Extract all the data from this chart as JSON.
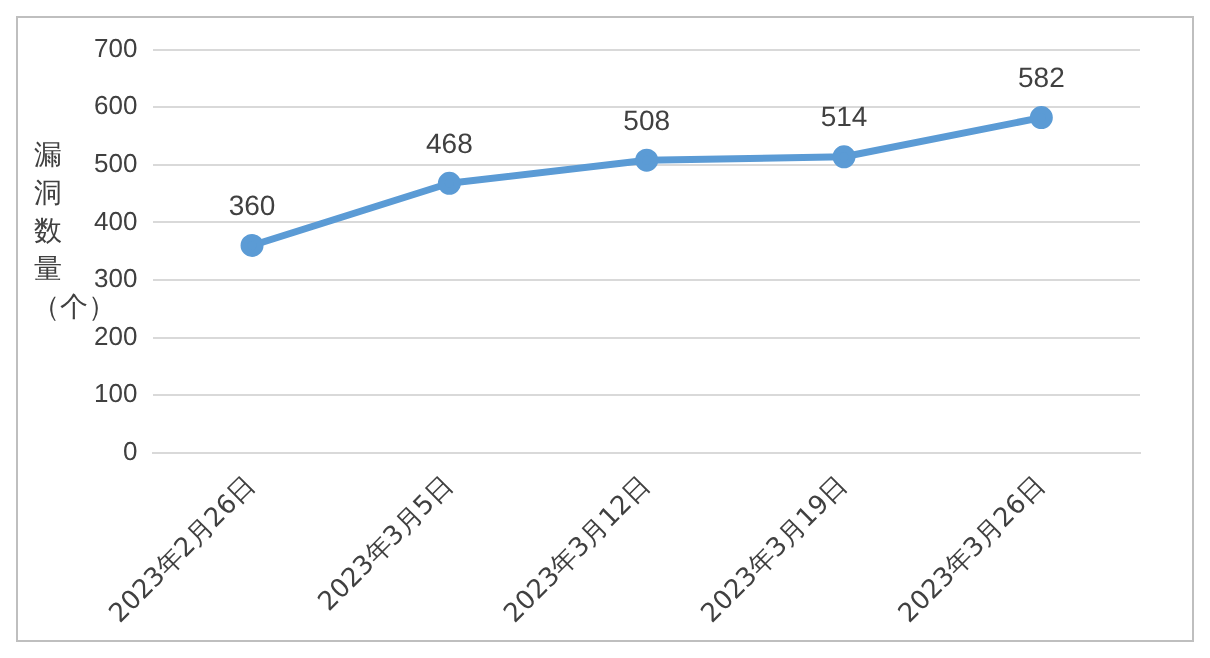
{
  "chart_data": {
    "type": "line",
    "ylabel": "漏洞数量（个）",
    "categories": [
      "2023年2月26日",
      "2023年3月5日",
      "2023年3月12日",
      "2023年3月19日",
      "2023年3月26日"
    ],
    "series": [
      {
        "color": "#5b9bd5",
        "values": [
          360,
          468,
          508,
          514,
          582
        ]
      }
    ],
    "ylim": [
      0,
      700
    ],
    "yticks": [
      0,
      100,
      200,
      300,
      400,
      500,
      600,
      700
    ],
    "grid": "y",
    "legend": false,
    "marker": "circle",
    "line_style": "solid",
    "data_labels": true
  }
}
